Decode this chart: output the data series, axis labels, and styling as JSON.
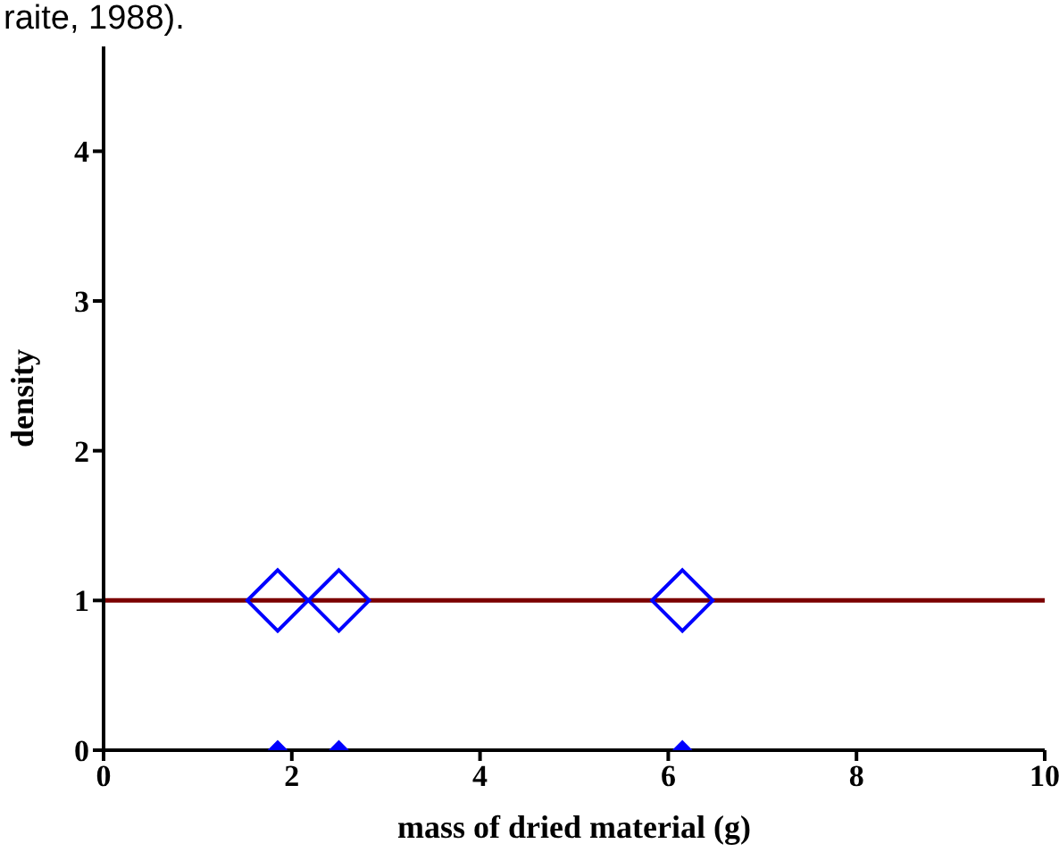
{
  "chart_data": {
    "type": "scatter",
    "annotations": [
      "raite, 1988)."
    ],
    "xlabel": "mass of dried material (g)",
    "ylabel": "density",
    "xlim": [
      0,
      10
    ],
    "ylim": [
      0,
      4.7
    ],
    "xticks": [
      0,
      2,
      4,
      6,
      8,
      10
    ],
    "yticks": [
      0,
      1,
      2,
      3,
      4
    ],
    "grid": false,
    "series": [
      {
        "type": "line",
        "color": "#7b0000",
        "x": [
          0,
          10
        ],
        "values": [
          1,
          1
        ],
        "marker": "none"
      },
      {
        "color": "#0000ff",
        "x": [
          1.85,
          2.5,
          6.15
        ],
        "values": [
          1,
          1,
          1
        ],
        "marker": "diamond"
      },
      {
        "color": "#0000ff",
        "x": [
          1.85,
          2.5,
          6.15
        ],
        "values": [
          0,
          0,
          0
        ],
        "marker": "diamond"
      }
    ]
  }
}
